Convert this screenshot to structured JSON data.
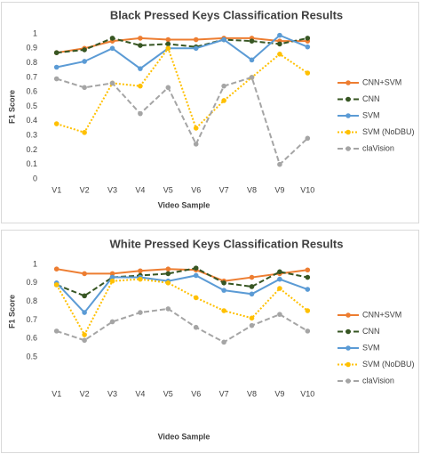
{
  "chart_data": [
    {
      "type": "line",
      "title": "Black Pressed Keys Classification Results",
      "x_label": "Video Sample",
      "y_label": "F1 Score",
      "categories": [
        "V1",
        "V2",
        "V3",
        "V4",
        "V5",
        "V6",
        "V7",
        "V8",
        "V9",
        "V10"
      ],
      "ylim": [
        0,
        1
      ],
      "yticks": [
        0,
        0.1,
        0.2,
        0.3,
        0.4,
        0.5,
        0.6,
        0.7,
        0.8,
        0.9,
        1
      ],
      "grid": false,
      "legend": "right",
      "series": [
        {
          "name": "CNN+SVM",
          "color": "#ed7d31",
          "line_style": "solid",
          "values": [
            0.87,
            0.9,
            0.95,
            0.97,
            0.96,
            0.96,
            0.97,
            0.97,
            0.95,
            0.95
          ]
        },
        {
          "name": "CNN",
          "color": "#375623",
          "line_style": "dashed",
          "values": [
            0.87,
            0.89,
            0.97,
            0.92,
            0.93,
            0.91,
            0.96,
            0.95,
            0.93,
            0.97
          ]
        },
        {
          "name": "SVM",
          "color": "#5b9bd5",
          "line_style": "solid",
          "values": [
            0.77,
            0.81,
            0.9,
            0.76,
            0.9,
            0.9,
            0.96,
            0.82,
            0.99,
            0.91
          ]
        },
        {
          "name": "SVM (NoDBU)",
          "color": "#ffc000",
          "line_style": "dotted",
          "values": [
            0.38,
            0.32,
            0.66,
            0.64,
            0.9,
            0.35,
            0.54,
            0.7,
            0.86,
            0.73
          ]
        },
        {
          "name": "claVision",
          "color": "#a5a5a5",
          "line_style": "dashed",
          "values": [
            0.69,
            0.63,
            0.66,
            0.45,
            0.63,
            0.24,
            0.64,
            0.7,
            0.1,
            0.28
          ]
        }
      ]
    },
    {
      "type": "line",
      "title": "White Pressed Keys Classification Results",
      "x_label": "Video Sample",
      "y_label": "F1 Score",
      "categories": [
        "V1",
        "V2",
        "V3",
        "V4",
        "V5",
        "V6",
        "V7",
        "V8",
        "V9",
        "V10"
      ],
      "ylim": [
        0.5,
        1
      ],
      "yticks": [
        0.5,
        0.6,
        0.7,
        0.8,
        0.9,
        1
      ],
      "grid": false,
      "legend": "right",
      "series": [
        {
          "name": "CNN+SVM",
          "color": "#ed7d31",
          "line_style": "solid",
          "values": [
            0.975,
            0.95,
            0.95,
            0.965,
            0.975,
            0.97,
            0.91,
            0.93,
            0.95,
            0.97
          ]
        },
        {
          "name": "CNN",
          "color": "#375623",
          "line_style": "dashed",
          "values": [
            0.89,
            0.83,
            0.93,
            0.94,
            0.95,
            0.98,
            0.9,
            0.88,
            0.96,
            0.93
          ]
        },
        {
          "name": "SVM",
          "color": "#5b9bd5",
          "line_style": "solid",
          "values": [
            0.9,
            0.74,
            0.93,
            0.93,
            0.91,
            0.94,
            0.86,
            0.84,
            0.92,
            0.865
          ]
        },
        {
          "name": "SVM (NoDBU)",
          "color": "#ffc000",
          "line_style": "dotted",
          "values": [
            0.89,
            0.62,
            0.91,
            0.92,
            0.9,
            0.82,
            0.75,
            0.71,
            0.87,
            0.75
          ]
        },
        {
          "name": "claVision",
          "color": "#a5a5a5",
          "line_style": "dashed",
          "values": [
            0.64,
            0.59,
            0.69,
            0.74,
            0.76,
            0.66,
            0.58,
            0.67,
            0.73,
            0.64
          ]
        }
      ]
    }
  ]
}
